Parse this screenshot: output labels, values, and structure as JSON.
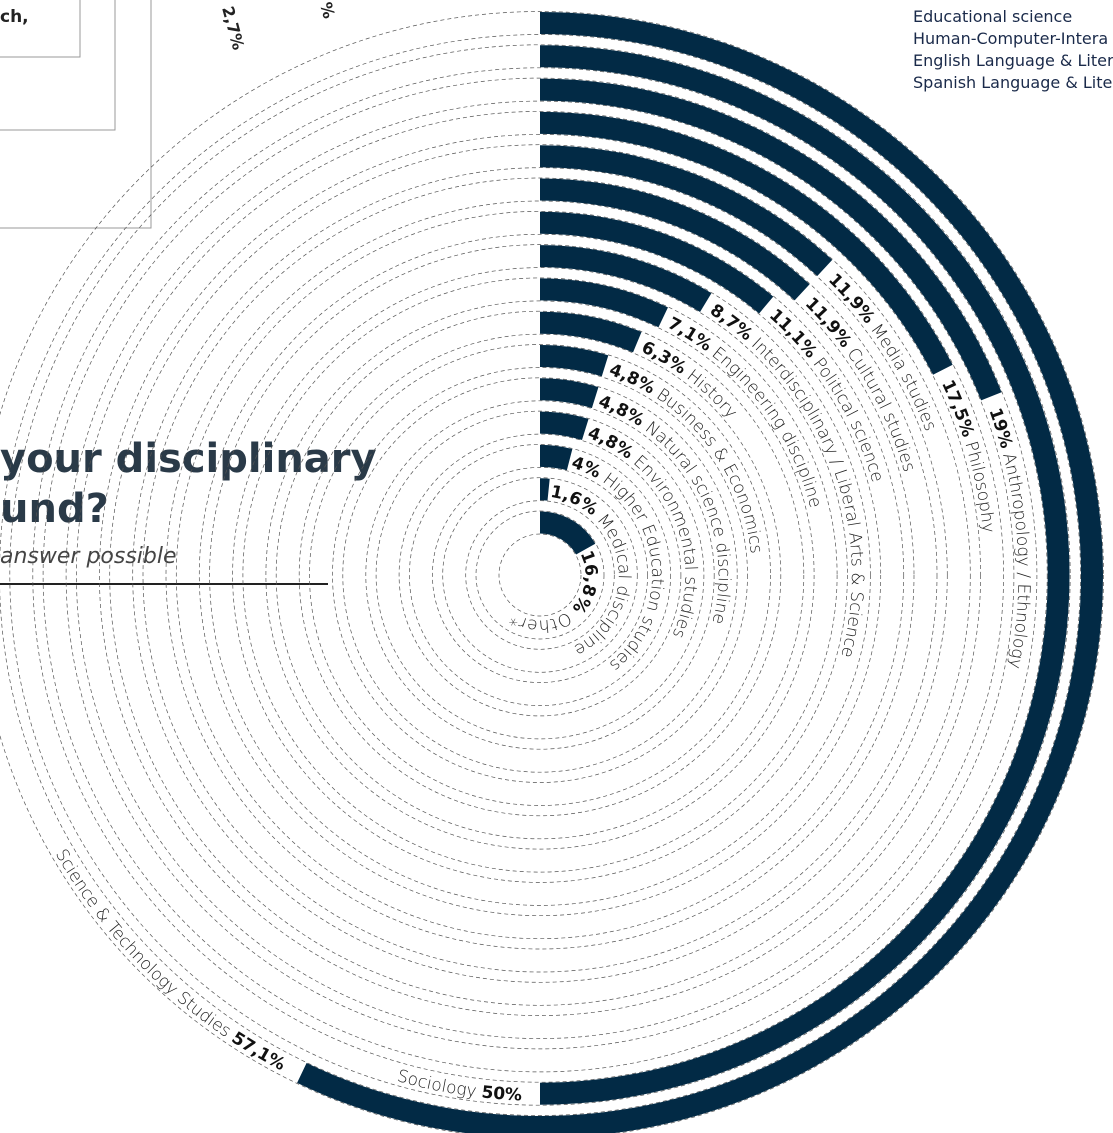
{
  "header": {
    "fragment": "ch,",
    "title_lines": [
      "your disciplinary",
      "und?"
    ],
    "subtitle": "answer possible",
    "top_fragments": [
      "2,7%",
      "%"
    ]
  },
  "legend_list": [
    "Educational science",
    "Human-Computer-Intera",
    "English Language & Liter",
    "Spanish Language & Lite"
  ],
  "chart_data": {
    "type": "radial-bar",
    "categories": [
      "Science & Technology Studies",
      "Sociology",
      "Anthropology / Ethnology",
      "Philosophy",
      "Media studies",
      "Cultural studies",
      "Political science",
      "Interdisciplinary / Liberal Arts & Science",
      "Engineering discipline",
      "History",
      "Business & Economics",
      "Natural science discipline",
      "Environmental studies",
      "Higher Education studies",
      "Medical discipline",
      "Other*"
    ],
    "values": [
      57.1,
      50,
      19,
      17.5,
      11.9,
      11.9,
      11.1,
      8.7,
      7.1,
      6.3,
      4.8,
      4.8,
      4.8,
      4,
      1.6,
      16.8
    ],
    "value_labels": [
      "57,1%",
      "50%",
      "19%",
      "17,5%",
      "11,9%",
      "11,9%",
      "11,1%",
      "8,7%",
      "7,1%",
      "6,3%",
      "4,8%",
      "4,8%",
      "4,8%",
      "4%",
      "1,6%",
      "16,8%"
    ],
    "color": "#022a45"
  }
}
